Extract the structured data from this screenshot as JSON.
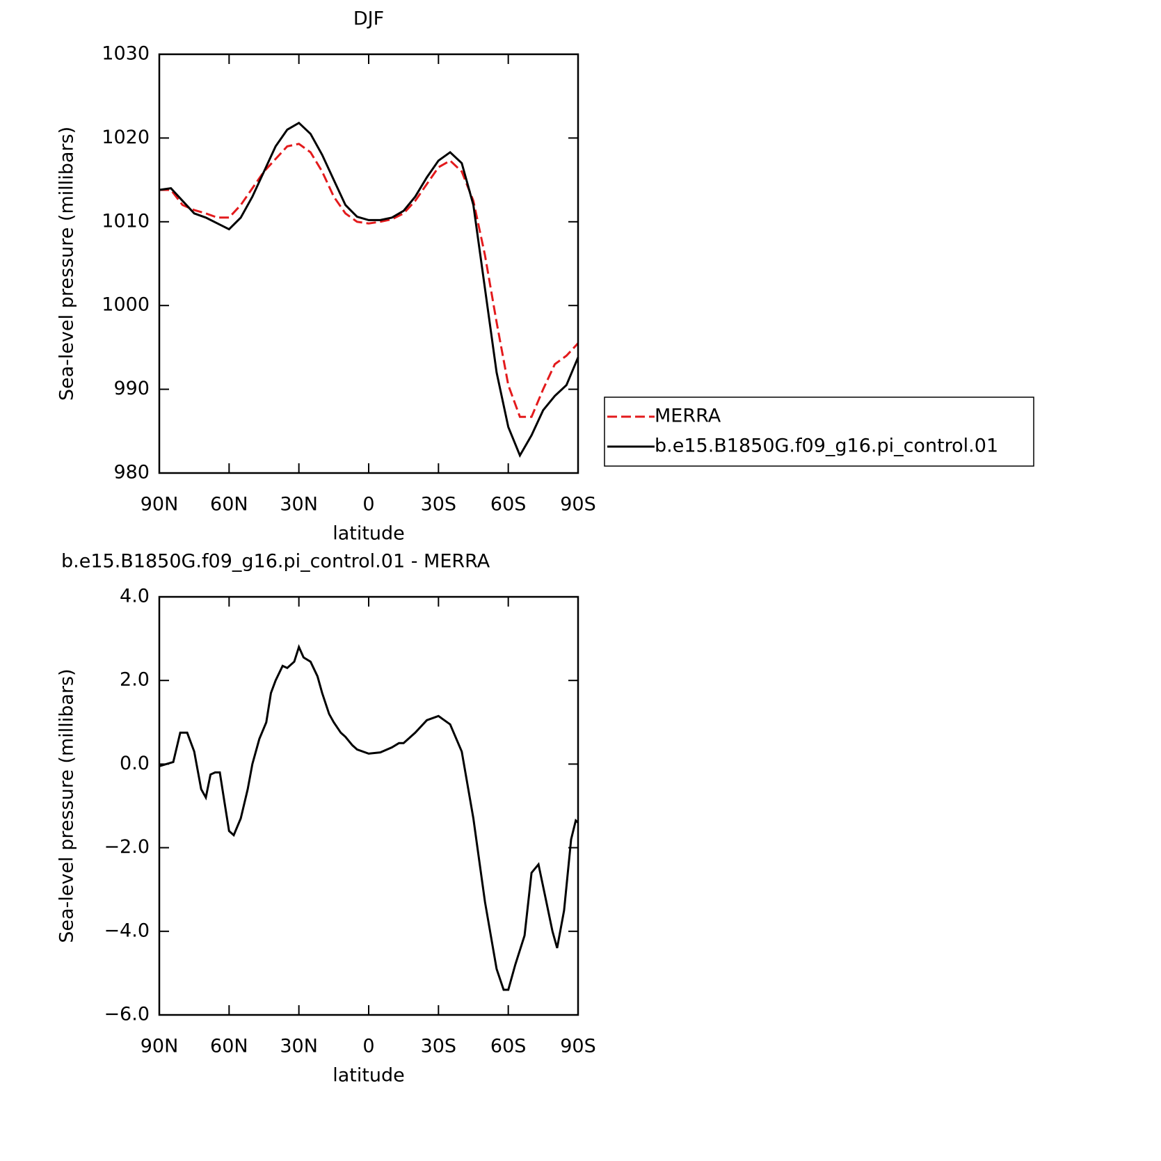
{
  "chart_data": [
    {
      "type": "line",
      "title": "DJF",
      "xlabel": "latitude",
      "ylabel": "Sea-level pressure (millibars)",
      "x": [
        90,
        85,
        80,
        75,
        70,
        65,
        60,
        55,
        50,
        45,
        40,
        35,
        30,
        25,
        20,
        15,
        10,
        5,
        0,
        -5,
        -10,
        -15,
        -20,
        -25,
        -30,
        -35,
        -40,
        -45,
        -50,
        -55,
        -60,
        -65,
        -70,
        -75,
        -80,
        -85,
        -90
      ],
      "series": [
        {
          "name": "MERRA",
          "color": "#e31a1c",
          "dash": true,
          "values": [
            1013.8,
            1013.8,
            1012,
            1011.4,
            1011,
            1010.5,
            1010.5,
            1012,
            1014,
            1016,
            1017.5,
            1019,
            1019.3,
            1018.3,
            1016,
            1013,
            1011,
            1010,
            1009.8,
            1010,
            1010.3,
            1011,
            1012.5,
            1014.5,
            1016.5,
            1017.3,
            1016,
            1012.5,
            1006,
            998,
            990.5,
            986.7,
            986.7,
            990,
            993,
            994,
            995.5
          ]
        },
        {
          "name": "b.e15.B1850G.f09_g16.pi_control.01",
          "color": "#000000",
          "dash": false,
          "values": [
            1013.8,
            1014,
            1012.5,
            1011,
            1010.5,
            1009.8,
            1009.1,
            1010.5,
            1013,
            1016,
            1019,
            1021,
            1021.8,
            1020.5,
            1018,
            1015,
            1012,
            1010.6,
            1010.2,
            1010.2,
            1010.5,
            1011.3,
            1013,
            1015.3,
            1017.3,
            1018.3,
            1017,
            1012,
            1002,
            992,
            985.5,
            982.1,
            984.5,
            987.5,
            989.2,
            990.5,
            993.8
          ]
        }
      ],
      "xlim": [
        90,
        -90
      ],
      "xticks": [
        {
          "value": 90,
          "label": "90N"
        },
        {
          "value": 60,
          "label": "60N"
        },
        {
          "value": 30,
          "label": "30N"
        },
        0,
        {
          "value": -30,
          "label": "30S"
        },
        {
          "value": -60,
          "label": "60S"
        },
        {
          "value": -90,
          "label": "90S"
        }
      ],
      "ylim": [
        980,
        1030
      ],
      "yticks": [
        980,
        990,
        1000,
        1010,
        1020,
        1030
      ],
      "legend": "right"
    },
    {
      "type": "line",
      "title": "b.e15.B1850G.f09_g16.pi_control.01 - MERRA",
      "xlabel": "latitude",
      "ylabel": "Sea-level pressure (millibars)",
      "x": [
        90,
        87,
        84,
        81,
        78,
        75,
        72,
        70,
        68,
        66,
        64,
        62,
        60,
        58,
        55,
        52,
        50,
        47,
        44,
        42,
        40,
        37,
        35,
        32,
        30,
        28,
        25,
        22,
        20,
        17,
        15,
        12,
        10,
        7,
        5,
        0,
        -5,
        -10,
        -13,
        -15,
        -20,
        -25,
        -30,
        -35,
        -40,
        -45,
        -50,
        -55,
        -58,
        -60,
        -63,
        -67,
        -70,
        -73,
        -76,
        -79,
        -81,
        -84,
        -87,
        -89,
        -90
      ],
      "series": [
        {
          "color": "#000000",
          "values": [
            -0.05,
            0,
            0.05,
            0.75,
            0.75,
            0.3,
            -0.6,
            -0.8,
            -0.25,
            -0.2,
            -0.2,
            -0.9,
            -1.6,
            -1.7,
            -1.3,
            -0.6,
            0,
            0.6,
            1.0,
            1.7,
            2.0,
            2.35,
            2.3,
            2.45,
            2.8,
            2.55,
            2.45,
            2.1,
            1.7,
            1.2,
            1.0,
            0.75,
            0.65,
            0.45,
            0.35,
            0.25,
            0.28,
            0.4,
            0.5,
            0.5,
            0.75,
            1.05,
            1.15,
            0.95,
            0.3,
            -1.3,
            -3.3,
            -4.9,
            -5.4,
            -5.4,
            -4.8,
            -4.1,
            -2.6,
            -2.4,
            -3.2,
            -4.0,
            -4.4,
            -3.5,
            -1.8,
            -1.35,
            -1.4
          ]
        }
      ],
      "xlim": [
        90,
        -90
      ],
      "xticks": [
        {
          "value": 90,
          "label": "90N"
        },
        {
          "value": 60,
          "label": "60N"
        },
        {
          "value": 30,
          "label": "30N"
        },
        0,
        {
          "value": -30,
          "label": "30S"
        },
        {
          "value": -60,
          "label": "60S"
        },
        {
          "value": -90,
          "label": "90S"
        }
      ],
      "ylim": [
        -6,
        4
      ],
      "yticks": [
        {
          "value": -6,
          "label": "−6.0"
        },
        {
          "value": -4,
          "label": "−4.0"
        },
        {
          "value": -2,
          "label": "−2.0"
        },
        {
          "value": 0,
          "label": "0.0"
        },
        {
          "value": 2,
          "label": "2.0"
        },
        {
          "value": 4,
          "label": "4.0"
        }
      ]
    }
  ]
}
